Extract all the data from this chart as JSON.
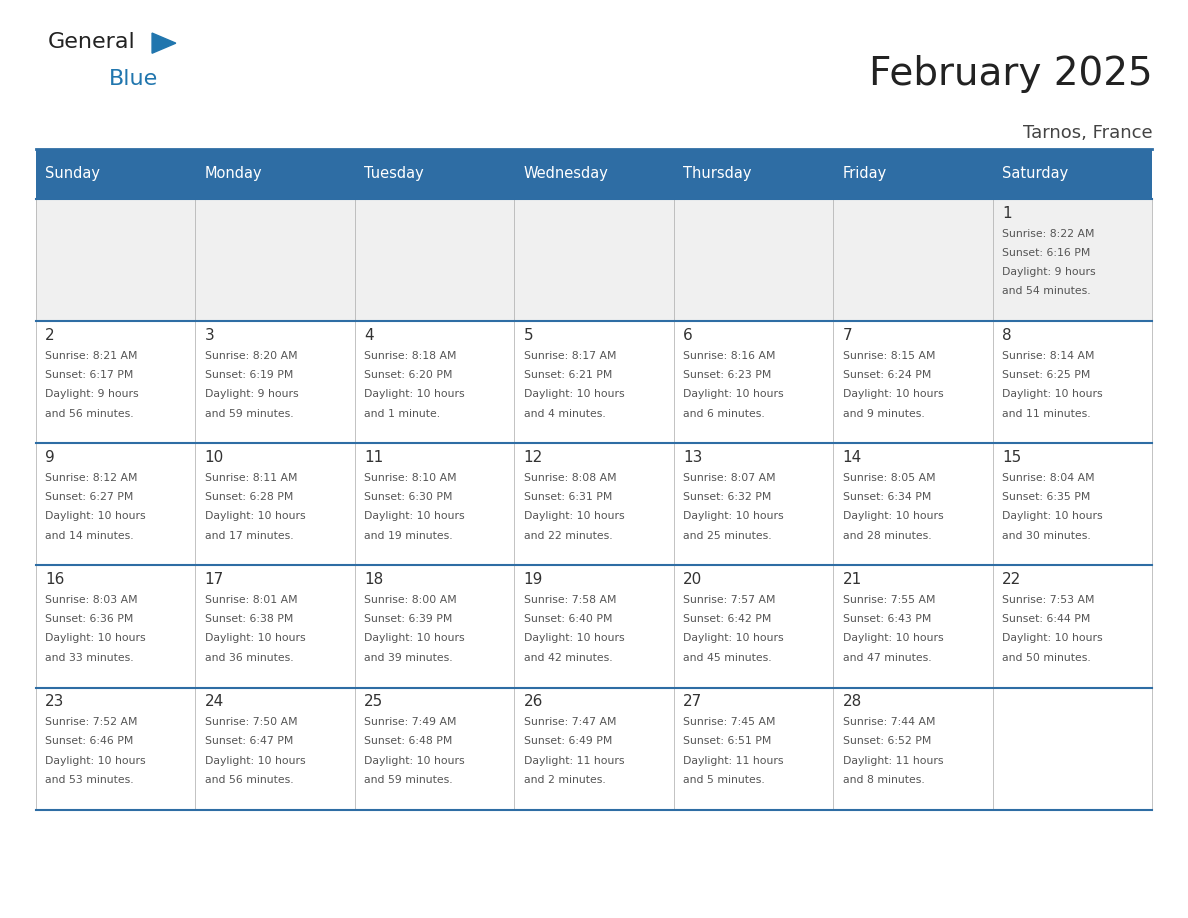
{
  "title": "February 2025",
  "subtitle": "Tarnos, France",
  "header_bg_color": "#2E6DA4",
  "header_text_color": "#FFFFFF",
  "day_names": [
    "Sunday",
    "Monday",
    "Tuesday",
    "Wednesday",
    "Thursday",
    "Friday",
    "Saturday"
  ],
  "cell_bg_color": "#FFFFFF",
  "alt_cell_bg_color": "#F0F0F0",
  "grid_color": "#AAAAAA",
  "divider_color": "#2E6DA4",
  "date_color": "#333333",
  "info_color": "#555555",
  "title_color": "#222222",
  "subtitle_color": "#444444",
  "logo_general_color": "#222222",
  "logo_blue_color": "#2176AE",
  "calendar": [
    [
      {
        "day": null,
        "info": ""
      },
      {
        "day": null,
        "info": ""
      },
      {
        "day": null,
        "info": ""
      },
      {
        "day": null,
        "info": ""
      },
      {
        "day": null,
        "info": ""
      },
      {
        "day": null,
        "info": ""
      },
      {
        "day": 1,
        "info": "Sunrise: 8:22 AM\nSunset: 6:16 PM\nDaylight: 9 hours\nand 54 minutes."
      }
    ],
    [
      {
        "day": 2,
        "info": "Sunrise: 8:21 AM\nSunset: 6:17 PM\nDaylight: 9 hours\nand 56 minutes."
      },
      {
        "day": 3,
        "info": "Sunrise: 8:20 AM\nSunset: 6:19 PM\nDaylight: 9 hours\nand 59 minutes."
      },
      {
        "day": 4,
        "info": "Sunrise: 8:18 AM\nSunset: 6:20 PM\nDaylight: 10 hours\nand 1 minute."
      },
      {
        "day": 5,
        "info": "Sunrise: 8:17 AM\nSunset: 6:21 PM\nDaylight: 10 hours\nand 4 minutes."
      },
      {
        "day": 6,
        "info": "Sunrise: 8:16 AM\nSunset: 6:23 PM\nDaylight: 10 hours\nand 6 minutes."
      },
      {
        "day": 7,
        "info": "Sunrise: 8:15 AM\nSunset: 6:24 PM\nDaylight: 10 hours\nand 9 minutes."
      },
      {
        "day": 8,
        "info": "Sunrise: 8:14 AM\nSunset: 6:25 PM\nDaylight: 10 hours\nand 11 minutes."
      }
    ],
    [
      {
        "day": 9,
        "info": "Sunrise: 8:12 AM\nSunset: 6:27 PM\nDaylight: 10 hours\nand 14 minutes."
      },
      {
        "day": 10,
        "info": "Sunrise: 8:11 AM\nSunset: 6:28 PM\nDaylight: 10 hours\nand 17 minutes."
      },
      {
        "day": 11,
        "info": "Sunrise: 8:10 AM\nSunset: 6:30 PM\nDaylight: 10 hours\nand 19 minutes."
      },
      {
        "day": 12,
        "info": "Sunrise: 8:08 AM\nSunset: 6:31 PM\nDaylight: 10 hours\nand 22 minutes."
      },
      {
        "day": 13,
        "info": "Sunrise: 8:07 AM\nSunset: 6:32 PM\nDaylight: 10 hours\nand 25 minutes."
      },
      {
        "day": 14,
        "info": "Sunrise: 8:05 AM\nSunset: 6:34 PM\nDaylight: 10 hours\nand 28 minutes."
      },
      {
        "day": 15,
        "info": "Sunrise: 8:04 AM\nSunset: 6:35 PM\nDaylight: 10 hours\nand 30 minutes."
      }
    ],
    [
      {
        "day": 16,
        "info": "Sunrise: 8:03 AM\nSunset: 6:36 PM\nDaylight: 10 hours\nand 33 minutes."
      },
      {
        "day": 17,
        "info": "Sunrise: 8:01 AM\nSunset: 6:38 PM\nDaylight: 10 hours\nand 36 minutes."
      },
      {
        "day": 18,
        "info": "Sunrise: 8:00 AM\nSunset: 6:39 PM\nDaylight: 10 hours\nand 39 minutes."
      },
      {
        "day": 19,
        "info": "Sunrise: 7:58 AM\nSunset: 6:40 PM\nDaylight: 10 hours\nand 42 minutes."
      },
      {
        "day": 20,
        "info": "Sunrise: 7:57 AM\nSunset: 6:42 PM\nDaylight: 10 hours\nand 45 minutes."
      },
      {
        "day": 21,
        "info": "Sunrise: 7:55 AM\nSunset: 6:43 PM\nDaylight: 10 hours\nand 47 minutes."
      },
      {
        "day": 22,
        "info": "Sunrise: 7:53 AM\nSunset: 6:44 PM\nDaylight: 10 hours\nand 50 minutes."
      }
    ],
    [
      {
        "day": 23,
        "info": "Sunrise: 7:52 AM\nSunset: 6:46 PM\nDaylight: 10 hours\nand 53 minutes."
      },
      {
        "day": 24,
        "info": "Sunrise: 7:50 AM\nSunset: 6:47 PM\nDaylight: 10 hours\nand 56 minutes."
      },
      {
        "day": 25,
        "info": "Sunrise: 7:49 AM\nSunset: 6:48 PM\nDaylight: 10 hours\nand 59 minutes."
      },
      {
        "day": 26,
        "info": "Sunrise: 7:47 AM\nSunset: 6:49 PM\nDaylight: 11 hours\nand 2 minutes."
      },
      {
        "day": 27,
        "info": "Sunrise: 7:45 AM\nSunset: 6:51 PM\nDaylight: 11 hours\nand 5 minutes."
      },
      {
        "day": 28,
        "info": "Sunrise: 7:44 AM\nSunset: 6:52 PM\nDaylight: 11 hours\nand 8 minutes."
      },
      {
        "day": null,
        "info": ""
      }
    ]
  ]
}
